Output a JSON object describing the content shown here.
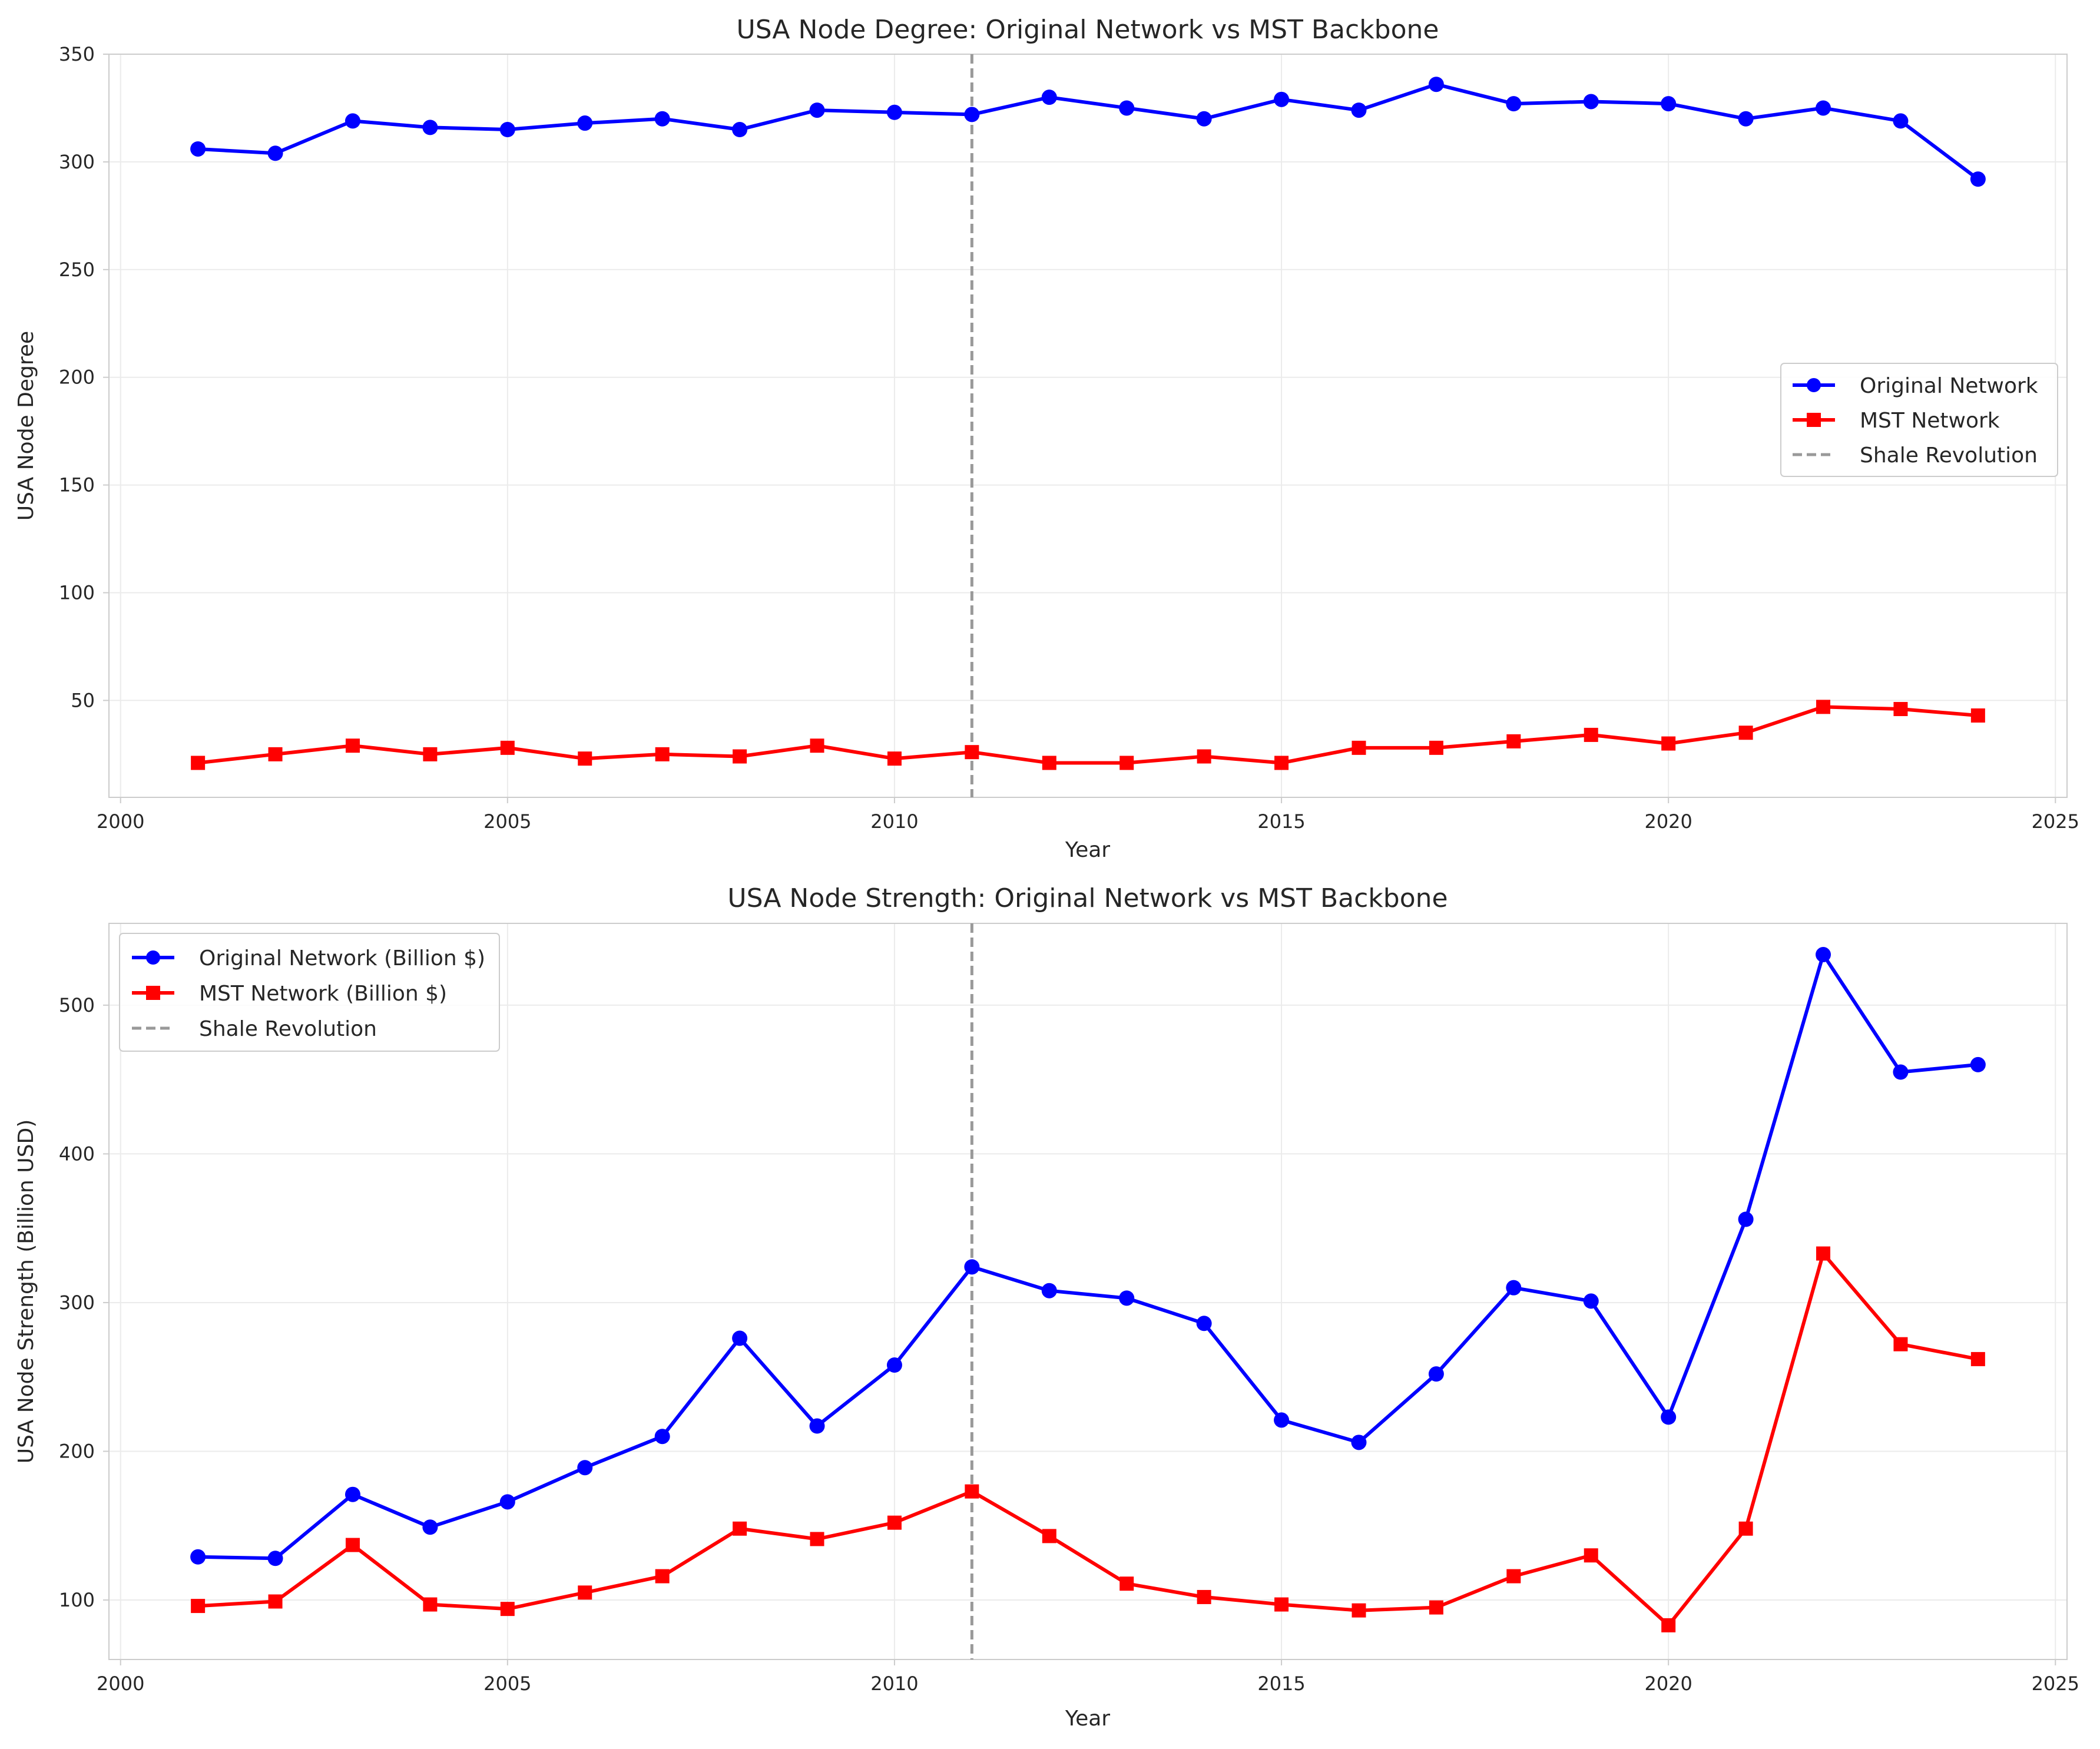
{
  "chart_data": [
    {
      "type": "line",
      "title": "USA Node Degree: Original Network vs MST Backbone",
      "xlabel": "Year",
      "ylabel": "USA Node Degree",
      "xlim": [
        1999.85,
        2025.15
      ],
      "ylim": [
        5,
        350
      ],
      "xticks": [
        2000,
        2005,
        2010,
        2015,
        2020,
        2025
      ],
      "yticks": [
        50,
        100,
        150,
        200,
        250,
        300,
        350
      ],
      "grid": true,
      "legend_position": "center-right",
      "x": [
        2001,
        2002,
        2003,
        2004,
        2005,
        2006,
        2007,
        2008,
        2009,
        2010,
        2011,
        2012,
        2013,
        2014,
        2015,
        2016,
        2017,
        2018,
        2019,
        2020,
        2021,
        2022,
        2023,
        2024
      ],
      "series": [
        {
          "name": "Original Network",
          "color": "#0000ff",
          "marker": "circle",
          "values": [
            306,
            304,
            319,
            316,
            315,
            318,
            320,
            315,
            324,
            323,
            322,
            330,
            325,
            320,
            329,
            324,
            336,
            327,
            328,
            327,
            320,
            325,
            319,
            292
          ]
        },
        {
          "name": "MST Network",
          "color": "#ff0000",
          "marker": "square",
          "values": [
            21,
            25,
            29,
            25,
            28,
            23,
            25,
            24,
            29,
            23,
            26,
            21,
            21,
            24,
            21,
            28,
            28,
            31,
            34,
            30,
            35,
            47,
            46,
            43
          ]
        }
      ],
      "vline": {
        "x": 2011,
        "name": "Shale Revolution",
        "color": "#999999"
      }
    },
    {
      "type": "line",
      "title": "USA Node Strength: Original Network vs MST Backbone",
      "xlabel": "Year",
      "ylabel": "USA Node Strength (Billion USD)",
      "xlim": [
        1999.85,
        2025.15
      ],
      "ylim": [
        60,
        555
      ],
      "xticks": [
        2000,
        2005,
        2010,
        2015,
        2020,
        2025
      ],
      "yticks": [
        100,
        200,
        300,
        400,
        500
      ],
      "grid": true,
      "legend_position": "top-left",
      "x": [
        2001,
        2002,
        2003,
        2004,
        2005,
        2006,
        2007,
        2008,
        2009,
        2010,
        2011,
        2012,
        2013,
        2014,
        2015,
        2016,
        2017,
        2018,
        2019,
        2020,
        2021,
        2022,
        2023,
        2024
      ],
      "series": [
        {
          "name": "Original Network (Billion $)",
          "color": "#0000ff",
          "marker": "circle",
          "values": [
            129,
            128,
            171,
            149,
            166,
            189,
            210,
            276,
            217,
            258,
            324,
            308,
            303,
            286,
            221,
            206,
            252,
            310,
            301,
            223,
            356,
            534,
            455,
            460
          ]
        },
        {
          "name": "MST Network (Billion $)",
          "color": "#ff0000",
          "marker": "square",
          "values": [
            96,
            99,
            137,
            97,
            94,
            105,
            116,
            148,
            141,
            152,
            173,
            143,
            111,
            102,
            97,
            93,
            95,
            116,
            130,
            83,
            148,
            333,
            272,
            262
          ]
        }
      ],
      "vline": {
        "x": 2011,
        "name": "Shale Revolution",
        "color": "#999999"
      }
    }
  ]
}
